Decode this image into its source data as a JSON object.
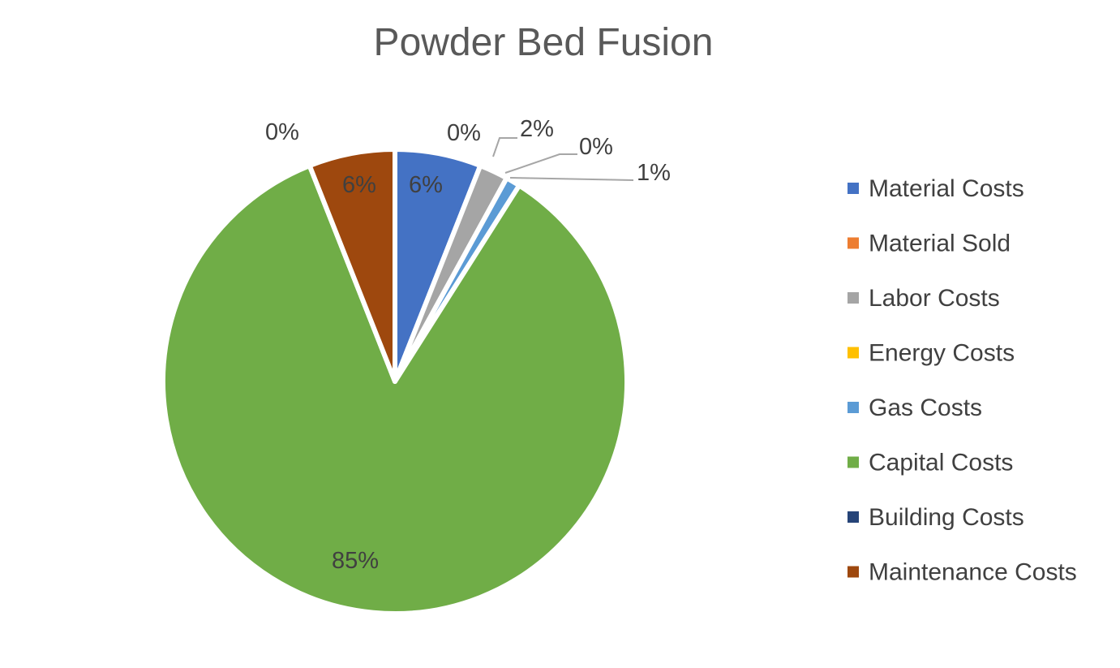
{
  "chart_data": {
    "type": "pie",
    "title": "Powder Bed Fusion",
    "categories": [
      "Material Costs",
      "Material Sold",
      "Labor Costs",
      "Energy Costs",
      "Gas Costs",
      "Capital Costs",
      "Building Costs",
      "Maintenance Costs"
    ],
    "values": [
      6,
      0,
      2,
      0,
      1,
      85,
      0,
      6
    ],
    "data_labels": [
      "6%",
      "0%",
      "2%",
      "0%",
      "1%",
      "85%",
      "0%",
      "6%"
    ],
    "colors": [
      "#4472C4",
      "#ED7D31",
      "#A5A5A5",
      "#FFC000",
      "#5B9BD5",
      "#70AD47",
      "#264478",
      "#9E480E"
    ],
    "legend_position": "right"
  }
}
